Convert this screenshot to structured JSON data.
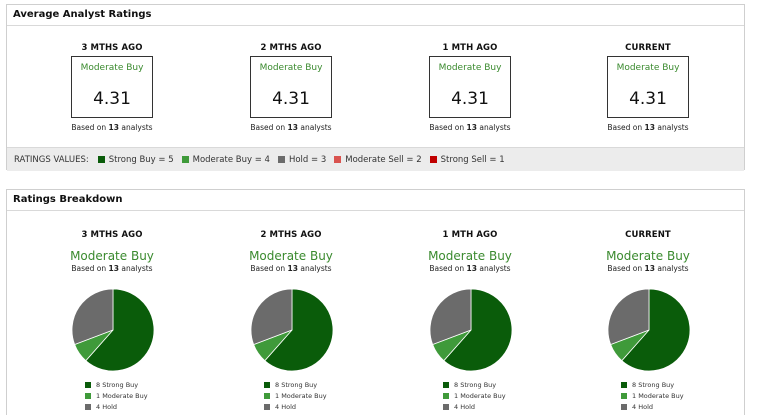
{
  "colors": {
    "strong_buy": "#0a5c0a",
    "moderate_buy": "#3f9a3a",
    "hold": "#6b6b6b",
    "moderate_sell": "#d9534f",
    "strong_sell": "#c00000",
    "rating_text": "#3a8a2e"
  },
  "average": {
    "title": "Average Analyst Ratings",
    "periods": [
      {
        "label": "3 MTHS AGO",
        "rating": "Moderate Buy",
        "value": "4.31",
        "based_prefix": "Based on",
        "count": "13",
        "based_suffix": "analysts"
      },
      {
        "label": "2 MTHS AGO",
        "rating": "Moderate Buy",
        "value": "4.31",
        "based_prefix": "Based on",
        "count": "13",
        "based_suffix": "analysts"
      },
      {
        "label": "1 MTH AGO",
        "rating": "Moderate Buy",
        "value": "4.31",
        "based_prefix": "Based on",
        "count": "13",
        "based_suffix": "analysts"
      },
      {
        "label": "CURRENT",
        "rating": "Moderate Buy",
        "value": "4.31",
        "based_prefix": "Based on",
        "count": "13",
        "based_suffix": "analysts"
      }
    ],
    "legend_label": "RATINGS VALUES:",
    "legend": [
      {
        "text": "Strong Buy = 5",
        "color": "#0a5c0a"
      },
      {
        "text": "Moderate Buy = 4",
        "color": "#3f9a3a"
      },
      {
        "text": "Hold = 3",
        "color": "#6b6b6b"
      },
      {
        "text": "Moderate Sell = 2",
        "color": "#d9534f"
      },
      {
        "text": "Strong Sell = 1",
        "color": "#c00000"
      }
    ]
  },
  "breakdown": {
    "title": "Ratings Breakdown",
    "periods": [
      {
        "label": "3 MTHS AGO",
        "rating": "Moderate Buy",
        "based_prefix": "Based on",
        "count": "13",
        "based_suffix": "analysts",
        "legend": [
          "8 Strong Buy",
          "1 Moderate Buy",
          "4 Hold"
        ]
      },
      {
        "label": "2 MTHS AGO",
        "rating": "Moderate Buy",
        "based_prefix": "Based on",
        "count": "13",
        "based_suffix": "analysts",
        "legend": [
          "8 Strong Buy",
          "1 Moderate Buy",
          "4 Hold"
        ]
      },
      {
        "label": "1 MTH AGO",
        "rating": "Moderate Buy",
        "based_prefix": "Based on",
        "count": "13",
        "based_suffix": "analysts",
        "legend": [
          "8 Strong Buy",
          "1 Moderate Buy",
          "4 Hold"
        ]
      },
      {
        "label": "CURRENT",
        "rating": "Moderate Buy",
        "based_prefix": "Based on",
        "count": "13",
        "based_suffix": "analysts",
        "legend": [
          "8 Strong Buy",
          "1 Moderate Buy",
          "4 Hold"
        ]
      }
    ]
  },
  "chart_data": [
    {
      "type": "pie",
      "categories": [
        "Strong Buy",
        "Moderate Buy",
        "Hold"
      ],
      "values": [
        8,
        1,
        4
      ],
      "colors": [
        "#0a5c0a",
        "#3f9a3a",
        "#6b6b6b"
      ]
    },
    {
      "type": "pie",
      "categories": [
        "Strong Buy",
        "Moderate Buy",
        "Hold"
      ],
      "values": [
        8,
        1,
        4
      ],
      "colors": [
        "#0a5c0a",
        "#3f9a3a",
        "#6b6b6b"
      ]
    },
    {
      "type": "pie",
      "categories": [
        "Strong Buy",
        "Moderate Buy",
        "Hold"
      ],
      "values": [
        8,
        1,
        4
      ],
      "colors": [
        "#0a5c0a",
        "#3f9a3a",
        "#6b6b6b"
      ]
    },
    {
      "type": "pie",
      "categories": [
        "Strong Buy",
        "Moderate Buy",
        "Hold"
      ],
      "values": [
        8,
        1,
        4
      ],
      "colors": [
        "#0a5c0a",
        "#3f9a3a",
        "#6b6b6b"
      ]
    }
  ]
}
